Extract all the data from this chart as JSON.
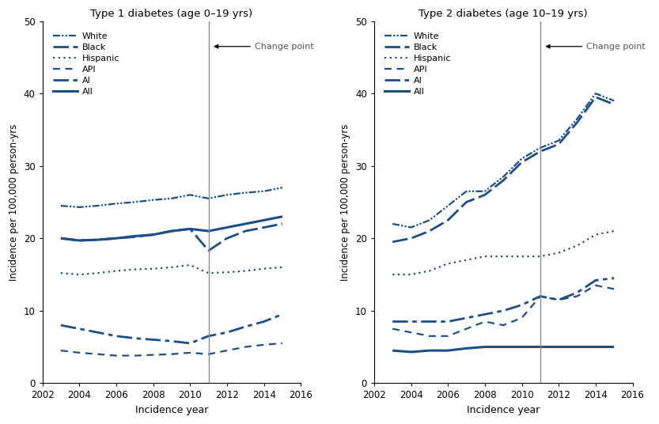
{
  "type1": {
    "title": "Type 1 diabetes (age 0–19 yrs)",
    "years": [
      2003,
      2004,
      2005,
      2006,
      2007,
      2008,
      2009,
      2010,
      2011,
      2012,
      2013,
      2014,
      2015
    ],
    "change_point": 2011,
    "series": {
      "White": [
        24.5,
        24.3,
        24.5,
        24.8,
        25.0,
        25.3,
        25.5,
        26.0,
        25.5,
        26.0,
        26.3,
        26.5,
        27.0
      ],
      "Black": [
        20.0,
        19.7,
        19.8,
        20.0,
        20.2,
        20.5,
        21.0,
        21.3,
        18.3,
        20.0,
        21.0,
        21.5,
        22.0
      ],
      "Hispanic": [
        15.2,
        15.0,
        15.2,
        15.5,
        15.7,
        15.8,
        16.0,
        16.3,
        15.2,
        15.3,
        15.5,
        15.8,
        16.0
      ],
      "AI": [
        8.0,
        7.5,
        7.0,
        6.5,
        6.2,
        6.0,
        5.8,
        5.5,
        6.5,
        7.0,
        7.8,
        8.5,
        9.5
      ],
      "API": [
        4.5,
        4.2,
        4.0,
        3.8,
        3.8,
        3.9,
        4.0,
        4.2,
        4.0,
        4.5,
        5.0,
        5.3,
        5.5
      ],
      "All": [
        20.0,
        19.7,
        19.8,
        20.0,
        20.3,
        20.5,
        21.0,
        21.3,
        21.0,
        21.5,
        22.0,
        22.5,
        23.0
      ]
    }
  },
  "type2": {
    "title": "Type 2 diabetes (age 10–19 yrs)",
    "years": [
      2003,
      2004,
      2005,
      2006,
      2007,
      2008,
      2009,
      2010,
      2011,
      2012,
      2013,
      2014,
      2015
    ],
    "change_point": 2011,
    "series": {
      "White": [
        22.0,
        21.5,
        22.5,
        24.5,
        26.5,
        26.5,
        28.5,
        31.0,
        32.5,
        33.5,
        36.5,
        40.0,
        39.0
      ],
      "Black": [
        19.5,
        20.0,
        21.0,
        22.5,
        25.0,
        26.0,
        28.0,
        30.5,
        32.0,
        33.0,
        36.0,
        39.5,
        38.5
      ],
      "Hispanic": [
        15.0,
        15.0,
        15.5,
        16.5,
        17.0,
        17.5,
        17.5,
        17.5,
        17.5,
        18.0,
        19.0,
        20.5,
        21.0
      ],
      "AI": [
        8.5,
        8.5,
        8.5,
        8.5,
        9.0,
        9.5,
        10.0,
        10.8,
        12.0,
        11.5,
        12.5,
        14.2,
        14.5
      ],
      "API": [
        7.5,
        7.0,
        6.5,
        6.5,
        7.5,
        8.5,
        8.0,
        9.0,
        12.0,
        11.5,
        12.0,
        13.5,
        13.0
      ],
      "All": [
        4.5,
        4.3,
        4.5,
        4.5,
        4.8,
        5.0,
        5.0,
        5.0,
        5.0,
        5.0,
        5.0,
        5.0,
        5.0
      ]
    }
  },
  "line_color": "#1a4f8a",
  "change_point_color": "#8c8c8c",
  "legend_order": [
    "White",
    "Black",
    "Hispanic",
    "API",
    "AI",
    "All"
  ],
  "xlabel": "Incidence year",
  "ylabel": "Incidence per 100,000 person-yrs",
  "ylim": [
    0,
    50
  ],
  "yticks": [
    0,
    10,
    20,
    30,
    40,
    50
  ],
  "xlim": [
    2002,
    2016
  ],
  "xticks": [
    2002,
    2004,
    2006,
    2008,
    2010,
    2012,
    2014,
    2016
  ],
  "change_point_annotation": "Change point",
  "change_point_y": 46.5
}
